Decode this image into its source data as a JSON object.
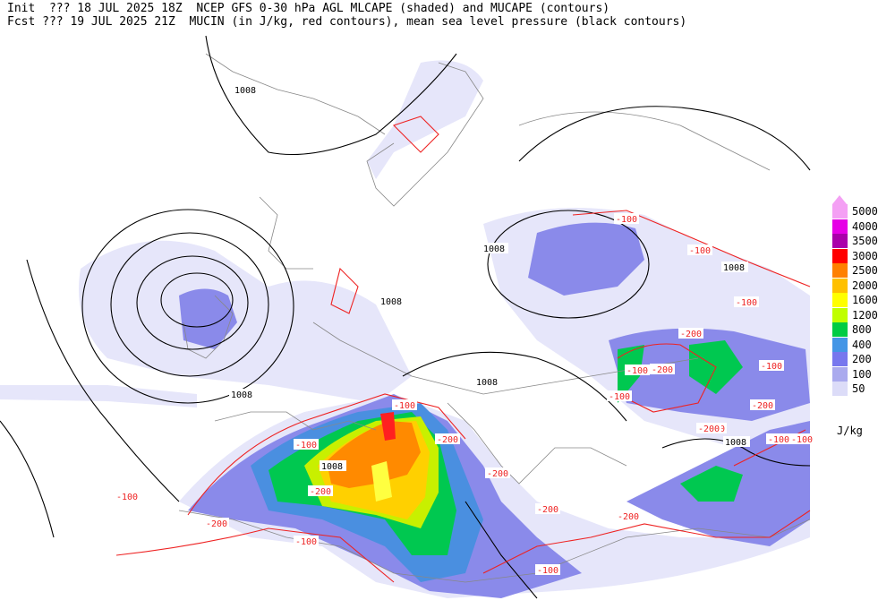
{
  "header": {
    "line1": "Init  ??? 18 JUL 2025 18Z  NCEP GFS 0-30 hPa AGL MLCAPE (shaded) and MUCAPE (contours)",
    "line2": "Fcst ??? 19 JUL 2025 21Z  MUCIN (in J/kg, red contours), mean sea level pressure (black contours)"
  },
  "legend": {
    "units": "J/kg",
    "levels": [
      {
        "label": "5000",
        "color": "#f4a0f4"
      },
      {
        "label": "4000",
        "color": "#e600e6"
      },
      {
        "label": "3500",
        "color": "#aa00aa"
      },
      {
        "label": "3000",
        "color": "#ff0000"
      },
      {
        "label": "2500",
        "color": "#ff8000"
      },
      {
        "label": "2000",
        "color": "#ffc000"
      },
      {
        "label": "1600",
        "color": "#ffff00"
      },
      {
        "label": "1200",
        "color": "#c0ff00"
      },
      {
        "label": "800",
        "color": "#00cc44"
      },
      {
        "label": "400",
        "color": "#4496e6"
      },
      {
        "label": "200",
        "color": "#7777ee"
      },
      {
        "label": "100",
        "color": "#aaaaee"
      },
      {
        "label": "50",
        "color": "#dcdcf8"
      }
    ]
  },
  "map": {
    "pressure_labels": [
      "1008",
      "1008",
      "1008",
      "1008",
      "1008",
      "1008",
      "1008",
      "1008"
    ],
    "cin_labels": [
      "-100",
      "-100",
      "-100",
      "-100",
      "-100",
      "-100",
      "-100",
      "-100",
      "-100",
      "-100",
      "-100",
      "-100",
      "-100",
      "-100",
      "-200",
      "-200",
      "-200",
      "-200",
      "-200",
      "-200",
      "-200",
      "-200",
      "-200",
      "-200"
    ]
  }
}
